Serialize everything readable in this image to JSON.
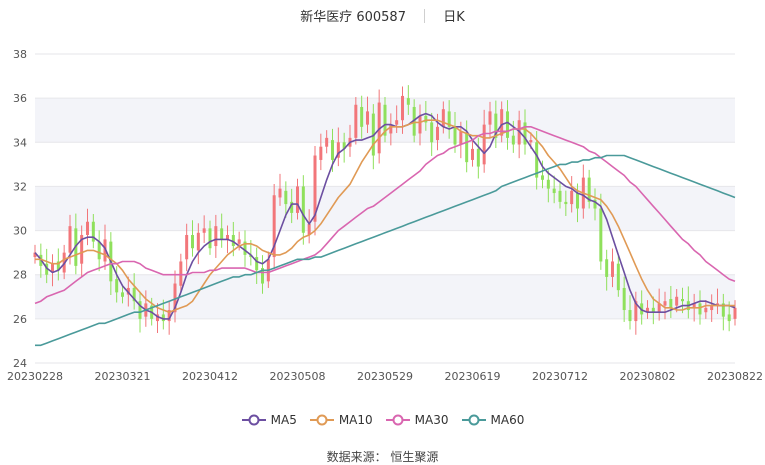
{
  "header": {
    "title": "新华医疗 600587",
    "period": "日K"
  },
  "source_label": "数据来源：  恒生聚源",
  "colors": {
    "up": "#f2767a",
    "down": "#8fe05c",
    "ma5": "#6c4fa1",
    "ma10": "#e09a55",
    "ma30": "#d966b0",
    "ma60": "#4a9a9a",
    "grid": "#e6e6ea",
    "band": "#f3f4f9"
  },
  "chart_data": {
    "type": "candlestick",
    "ylim": [
      24,
      38
    ],
    "yticks": [
      24,
      26,
      28,
      30,
      32,
      34,
      36,
      38
    ],
    "xtick_labels": [
      "20230228",
      "20230321",
      "20230412",
      "20230508",
      "20230529",
      "20230619",
      "20230712",
      "20230802",
      "20230822"
    ],
    "xtick_index": [
      0,
      15,
      30,
      45,
      60,
      75,
      90,
      105,
      120
    ],
    "num_days": 121,
    "series": [
      {
        "name": "MA5",
        "values": [
          29,
          28.7,
          28.3,
          28.1,
          28.2,
          28.5,
          28.9,
          29.3,
          29.6,
          29.7,
          29.7,
          29.5,
          29.2,
          28.6,
          28,
          27.5,
          27.2,
          26.9,
          26.6,
          26.4,
          26.3,
          26.1,
          26,
          26,
          26.5,
          27.2,
          28,
          28.6,
          29,
          29.3,
          29.5,
          29.6,
          29.6,
          29.6,
          29.5,
          29.3,
          29.1,
          28.9,
          28.6,
          28.5,
          28.7,
          29.3,
          30,
          30.7,
          31.2,
          31.2,
          30.7,
          30.3,
          30.7,
          31.5,
          32.3,
          33,
          33.5,
          33.7,
          34,
          34.1,
          34.1,
          34.2,
          34.3,
          34.6,
          34.8,
          34.8,
          34.7,
          34.7,
          34.8,
          35,
          35.2,
          35.3,
          35.2,
          34.9,
          34.7,
          34.6,
          34.7,
          34.7,
          34.5,
          34.1,
          33.8,
          33.5,
          33.8,
          34.4,
          34.8,
          34.9,
          34.7,
          34.5,
          34.2,
          33.8,
          33.4,
          32.9,
          32.6,
          32.4,
          32.2,
          32,
          31.9,
          31.7,
          31.6,
          31.4,
          31.3,
          31.1,
          30.5,
          29.7,
          28.9,
          28.1,
          27.3,
          26.7,
          26.4,
          26.3,
          26.3,
          26.3,
          26.3,
          26.4,
          26.5,
          26.6,
          26.6,
          26.7,
          26.8,
          26.8,
          26.7,
          26.6,
          26.6,
          26.6,
          26.5
        ]
      },
      {
        "name": "MA10",
        "values": [
          28.7,
          28.7,
          28.6,
          28.5,
          28.5,
          28.7,
          28.8,
          28.9,
          29,
          29.1,
          29.1,
          29,
          28.9,
          28.7,
          28.5,
          28.2,
          27.8,
          27.5,
          27.2,
          26.9,
          26.7,
          26.5,
          26.4,
          26.3,
          26.4,
          26.5,
          26.6,
          26.8,
          27.2,
          27.6,
          28,
          28.3,
          28.6,
          28.9,
          29.1,
          29.3,
          29.4,
          29.4,
          29.3,
          29.1,
          29,
          28.9,
          28.9,
          29,
          29.2,
          29.5,
          29.7,
          29.8,
          30,
          30.3,
          30.7,
          31.1,
          31.5,
          31.8,
          32.1,
          32.6,
          33.1,
          33.5,
          33.9,
          34.2,
          34.5,
          34.7,
          34.7,
          34.7,
          34.8,
          34.9,
          34.9,
          35,
          35,
          35,
          34.9,
          34.8,
          34.7,
          34.5,
          34.4,
          34.3,
          34.3,
          34.2,
          34.2,
          34.3,
          34.4,
          34.5,
          34.6,
          34.6,
          34.6,
          34.4,
          34.1,
          33.8,
          33.4,
          33.1,
          32.8,
          32.4,
          32,
          31.8,
          31.7,
          31.6,
          31.5,
          31.4,
          31.1,
          30.7,
          30.2,
          29.6,
          29,
          28.4,
          27.8,
          27.3,
          26.9,
          26.7,
          26.5,
          26.5,
          26.4,
          26.4,
          26.5,
          26.5,
          26.5,
          26.6,
          26.6,
          26.6,
          26.6,
          26.6,
          26.6
        ]
      },
      {
        "name": "MA30",
        "values": [
          26.7,
          26.8,
          27,
          27.1,
          27.2,
          27.3,
          27.5,
          27.7,
          27.9,
          28.1,
          28.2,
          28.3,
          28.4,
          28.5,
          28.5,
          28.6,
          28.6,
          28.6,
          28.5,
          28.3,
          28.2,
          28.1,
          28,
          28,
          28,
          28,
          28,
          28.1,
          28.1,
          28.1,
          28.2,
          28.2,
          28.3,
          28.3,
          28.3,
          28.3,
          28.3,
          28.2,
          28.1,
          28.1,
          28.1,
          28.2,
          28.3,
          28.4,
          28.5,
          28.6,
          28.7,
          28.8,
          28.9,
          29.1,
          29.4,
          29.7,
          30,
          30.2,
          30.4,
          30.6,
          30.8,
          31,
          31.1,
          31.3,
          31.5,
          31.7,
          31.9,
          32.1,
          32.3,
          32.5,
          32.7,
          33,
          33.2,
          33.4,
          33.5,
          33.7,
          33.8,
          33.9,
          34,
          34.1,
          34.3,
          34.4,
          34.4,
          34.5,
          34.5,
          34.5,
          34.6,
          34.6,
          34.7,
          34.7,
          34.6,
          34.5,
          34.4,
          34.3,
          34.2,
          34.1,
          34,
          33.9,
          33.8,
          33.6,
          33.5,
          33.3,
          33.1,
          32.9,
          32.7,
          32.5,
          32.2,
          32,
          31.7,
          31.4,
          31.1,
          30.8,
          30.5,
          30.2,
          29.9,
          29.6,
          29.4,
          29.1,
          28.9,
          28.6,
          28.4,
          28.2,
          28,
          27.8,
          27.7
        ]
      },
      {
        "name": "MA60",
        "values": [
          24.8,
          24.8,
          24.9,
          25,
          25.1,
          25.2,
          25.3,
          25.4,
          25.5,
          25.6,
          25.7,
          25.8,
          25.8,
          25.9,
          26,
          26.1,
          26.2,
          26.3,
          26.3,
          26.4,
          26.5,
          26.6,
          26.7,
          26.8,
          26.9,
          27,
          27.1,
          27.2,
          27.3,
          27.4,
          27.5,
          27.6,
          27.7,
          27.8,
          27.9,
          27.9,
          28,
          28,
          28.1,
          28.2,
          28.2,
          28.3,
          28.4,
          28.5,
          28.6,
          28.7,
          28.7,
          28.7,
          28.8,
          28.8,
          28.9,
          29,
          29.1,
          29.2,
          29.3,
          29.4,
          29.5,
          29.6,
          29.7,
          29.8,
          29.9,
          30,
          30.1,
          30.2,
          30.3,
          30.4,
          30.5,
          30.6,
          30.7,
          30.8,
          30.9,
          31,
          31.1,
          31.2,
          31.3,
          31.4,
          31.5,
          31.6,
          31.7,
          31.8,
          32,
          32.1,
          32.2,
          32.3,
          32.4,
          32.5,
          32.6,
          32.7,
          32.8,
          32.9,
          33,
          33,
          33.1,
          33.1,
          33.2,
          33.2,
          33.3,
          33.3,
          33.4,
          33.4,
          33.4,
          33.4,
          33.3,
          33.2,
          33.1,
          33,
          32.9,
          32.8,
          32.7,
          32.6,
          32.5,
          32.4,
          32.3,
          32.2,
          32.1,
          32,
          31.9,
          31.8,
          31.7,
          31.6,
          31.5
        ]
      }
    ],
    "closes": [
      29,
      28.4,
      28.0,
      28.5,
      28.2,
      29.0,
      30.2,
      28.4,
      29.8,
      30.4,
      29.5,
      28.7,
      29.6,
      27.7,
      27.2,
      27.0,
      27.4,
      26.8,
      26.0,
      26.7,
      26.0,
      26.2,
      25.9,
      26.4,
      27.6,
      28.6,
      29.8,
      29.2,
      29.9,
      30.1,
      29.2,
      30.2,
      29.6,
      29.8,
      29.3,
      29.6,
      28.9,
      28.8,
      28.2,
      27.6,
      28.7,
      31.6,
      31.9,
      31.2,
      30.8,
      32.0,
      29.9,
      30.3,
      33.4,
      33.8,
      34.2,
      33.2,
      34.0,
      33.7,
      34.2,
      35.7,
      34.7,
      35.4,
      33.4,
      35.8,
      34.3,
      34.8,
      35.0,
      36.1,
      35.7,
      34.3,
      35.2,
      34.9,
      34.0,
      34.7,
      35.5,
      34.7,
      33.9,
      34.5,
      33.1,
      33.7,
      32.9,
      34.8,
      35.4,
      34.2,
      35.5,
      34.2,
      33.9,
      35.0,
      33.9,
      34.1,
      32.4,
      32.3,
      31.9,
      31.7,
      31.3,
      31.2,
      31.8,
      31.0,
      32.4,
      31.3,
      31.0,
      28.6,
      27.9,
      28.6,
      27.3,
      26.4,
      25.9,
      26.8,
      26.2,
      26.5,
      26.3,
      26.7,
      26.8,
      26.5,
      27.0,
      26.8,
      26.4,
      26.7,
      26.2,
      26.5,
      26.6,
      26.7,
      26.1,
      25.9,
      26.5
    ],
    "opens": [
      28.8,
      28.9,
      28.5,
      28.1,
      28.6,
      28.1,
      29.0,
      30.1,
      28.5,
      29.8,
      30.4,
      29.5,
      28.6,
      29.5,
      27.8,
      27.2,
      27.1,
      27.4,
      26.8,
      26.1,
      26.6,
      25.9,
      26.2,
      25.9,
      26.3,
      27.5,
      28.7,
      29.8,
      29.1,
      29.9,
      30.1,
      29.3,
      30.1,
      29.6,
      29.8,
      29.4,
      29.5,
      28.9,
      28.8,
      28.3,
      27.7,
      28.8,
      31.5,
      31.8,
      31.3,
      30.8,
      32.0,
      29.8,
      30.4,
      33.2,
      33.8,
      34.1,
      33.3,
      34.0,
      33.8,
      34.2,
      35.6,
      34.8,
      35.3,
      33.5,
      35.7,
      34.4,
      34.8,
      35.0,
      36.0,
      35.6,
      34.4,
      35.2,
      34.9,
      34.1,
      34.7,
      35.4,
      34.7,
      33.9,
      34.4,
      33.2,
      33.7,
      33.0,
      34.8,
      35.3,
      34.3,
      35.4,
      34.3,
      33.9,
      34.9,
      34.0,
      34.0,
      32.5,
      32.3,
      31.9,
      31.8,
      31.3,
      31.2,
      31.7,
      31.0,
      32.4,
      31.4,
      31.0,
      28.7,
      27.9,
      28.5,
      27.4,
      26.4,
      25.9,
      26.7,
      26.3,
      26.5,
      26.3,
      26.6,
      26.9,
      26.6,
      26.9,
      26.8,
      26.5,
      26.7,
      26.3,
      26.4,
      26.6,
      26.7,
      26.2,
      26.0
    ]
  },
  "legend": [
    "MA5",
    "MA10",
    "MA30",
    "MA60"
  ]
}
